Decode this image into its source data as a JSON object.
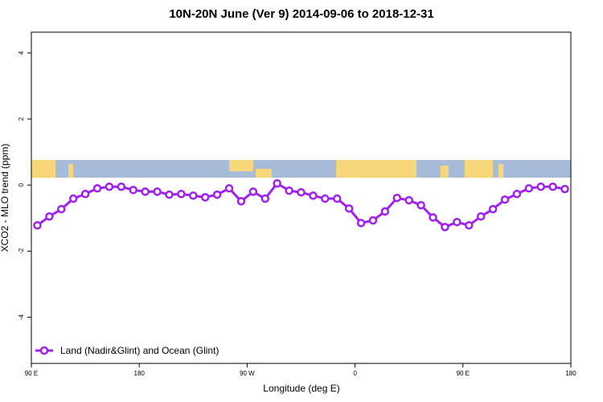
{
  "chart_data": {
    "type": "line",
    "title": "10N-20N June (Ver 9)   2014-09-06 to 2018-12-31",
    "x_label": "Longitude (deg E)",
    "y_label": "XCO2 - MLO trend (ppm)",
    "xlim": [
      90,
      540
    ],
    "ylim": [
      -5.4,
      4.63
    ],
    "xticks": [
      {
        "value": 90,
        "label": "90 E"
      },
      180,
      {
        "value": 270,
        "label": "90 W"
      },
      {
        "value": 360,
        "label": "0"
      },
      {
        "value": 450,
        "label": "90 E"
      },
      {
        "value": 540,
        "label": "180"
      }
    ],
    "yticks": [
      4,
      2,
      0,
      -2,
      -4
    ],
    "legend_position": "bottomleft",
    "x": [
      95,
      105,
      115,
      125,
      135,
      145,
      155,
      165,
      175,
      185,
      195,
      205,
      215,
      225,
      235,
      245,
      255,
      265,
      275,
      285,
      295,
      305,
      315,
      325,
      335,
      345,
      355,
      365,
      375,
      385,
      395,
      405,
      415,
      425,
      435,
      445,
      455,
      465,
      475,
      485,
      495,
      505,
      515,
      525,
      535
    ],
    "series": [
      {
        "name": "Land (Nadir&Glint) and Ocean (Glint)",
        "color": "#a020f0",
        "values": [
          -1.22,
          -0.95,
          -0.73,
          -0.41,
          -0.27,
          -0.1,
          -0.05,
          -0.05,
          -0.15,
          -0.2,
          -0.2,
          -0.29,
          -0.27,
          -0.32,
          -0.37,
          -0.29,
          -0.1,
          -0.49,
          -0.2,
          -0.41,
          0.05,
          -0.17,
          -0.22,
          -0.32,
          -0.41,
          -0.41,
          -0.71,
          -1.15,
          -1.07,
          -0.8,
          -0.39,
          -0.46,
          -0.61,
          -0.98,
          -1.27,
          -1.12,
          -1.22,
          -0.95,
          -0.73,
          -0.44,
          -0.27,
          -0.1,
          -0.05,
          -0.05,
          -0.12
        ]
      }
    ]
  }
}
